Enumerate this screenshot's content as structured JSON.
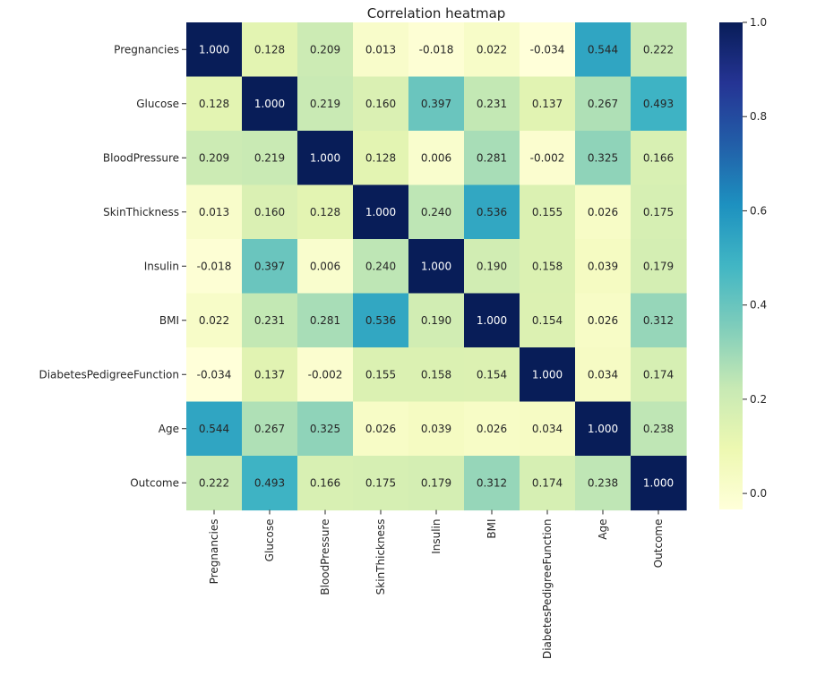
{
  "chart_data": {
    "type": "heatmap",
    "title": "Correlation heatmap",
    "row_labels": [
      "Pregnancies",
      "Glucose",
      "BloodPressure",
      "SkinThickness",
      "Insulin",
      "BMI",
      "DiabetesPedigreeFunction",
      "Age",
      "Outcome"
    ],
    "col_labels": [
      "Pregnancies",
      "Glucose",
      "BloodPressure",
      "SkinThickness",
      "Insulin",
      "BMI",
      "DiabetesPedigreeFunction",
      "Age",
      "Outcome"
    ],
    "values": [
      [
        1.0,
        0.128,
        0.209,
        0.013,
        -0.018,
        0.022,
        -0.034,
        0.544,
        0.222
      ],
      [
        0.128,
        1.0,
        0.219,
        0.16,
        0.397,
        0.231,
        0.137,
        0.267,
        0.493
      ],
      [
        0.209,
        0.219,
        1.0,
        0.128,
        0.006,
        0.281,
        -0.002,
        0.325,
        0.166
      ],
      [
        0.013,
        0.16,
        0.128,
        1.0,
        0.24,
        0.536,
        0.155,
        0.026,
        0.175
      ],
      [
        -0.018,
        0.397,
        0.006,
        0.24,
        1.0,
        0.19,
        0.158,
        0.039,
        0.179
      ],
      [
        0.022,
        0.231,
        0.281,
        0.536,
        0.19,
        1.0,
        0.154,
        0.026,
        0.312
      ],
      [
        -0.034,
        0.137,
        -0.002,
        0.155,
        0.158,
        0.154,
        1.0,
        0.034,
        0.174
      ],
      [
        0.544,
        0.267,
        0.325,
        0.026,
        0.039,
        0.026,
        0.034,
        1.0,
        0.238
      ],
      [
        0.222,
        0.493,
        0.166,
        0.175,
        0.179,
        0.312,
        0.174,
        0.238,
        1.0
      ]
    ],
    "value_format": "3 decimals",
    "colormap": "YlGnBu",
    "colorbar": {
      "min": -0.034,
      "max": 1.0,
      "ticks": [
        0.0,
        0.2,
        0.4,
        0.6,
        0.8,
        1.0
      ],
      "tick_labels": [
        "0.0",
        "0.2",
        "0.4",
        "0.6",
        "0.8",
        "1.0"
      ]
    }
  }
}
